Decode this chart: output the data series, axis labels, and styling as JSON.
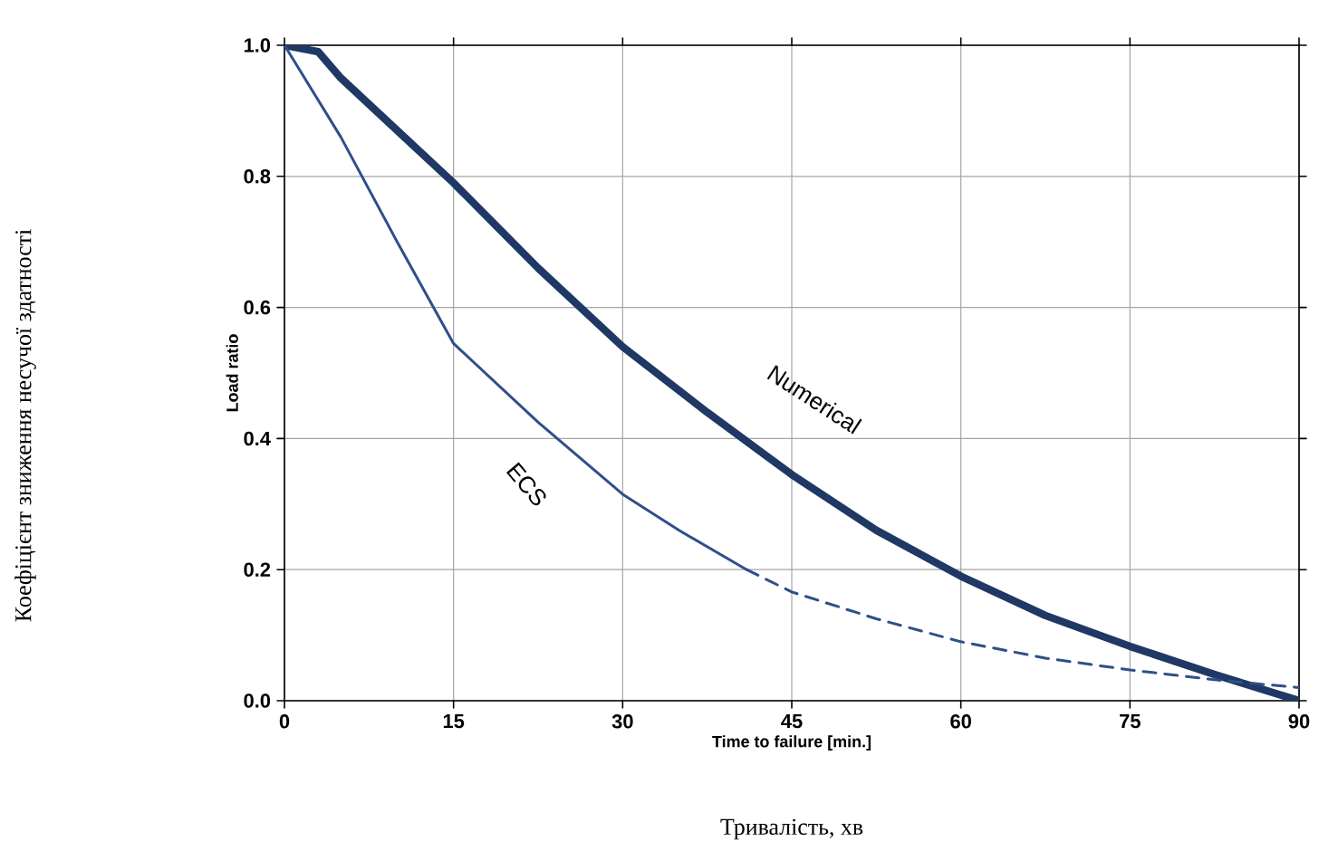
{
  "chart_data": {
    "type": "line",
    "xlabel": "Time to failure [min.]",
    "ylabel": "Load ratio",
    "annotations": [
      "Коефіцієнт зниження несучої здатності",
      "Тривалість, хв"
    ],
    "xlim": [
      0,
      90
    ],
    "ylim": [
      0,
      1
    ],
    "xticks": [
      0,
      15,
      30,
      45,
      60,
      75,
      90
    ],
    "yticks": [
      {
        "value": 0,
        "label": "0.0"
      },
      {
        "value": 0.2,
        "label": "0.2"
      },
      {
        "value": 0.4,
        "label": "0.4"
      },
      {
        "value": 0.6,
        "label": "0.6"
      },
      {
        "value": 0.8,
        "label": "0.8"
      },
      {
        "value": 1,
        "label": "1.0"
      }
    ],
    "grid": true,
    "line_style": "solid",
    "series": [
      {
        "name": "Numerical",
        "color": "#1f3864",
        "x": [
          0,
          3,
          5,
          10,
          15,
          22.5,
          30,
          37.5,
          45,
          52.5,
          60,
          67.5,
          75,
          82.5,
          90
        ],
        "values": [
          1,
          0.99,
          0.95,
          0.87,
          0.79,
          0.66,
          0.54,
          0.44,
          0.345,
          0.26,
          0.19,
          0.13,
          0.083,
          0.04,
          0.0
        ]
      },
      {
        "name": "ECS",
        "color": "#2f4f8a",
        "x": [
          0,
          5,
          10,
          15,
          22.5,
          30,
          35,
          41
        ],
        "values": [
          1,
          0.86,
          0.7,
          0.545,
          0.425,
          0.315,
          0.26,
          0.2
        ]
      },
      {
        "color": "#2f4f8a",
        "line_style": "dashed",
        "x": [
          41,
          45,
          52.5,
          60,
          67.5,
          75,
          82.5,
          90
        ],
        "values": [
          0.2,
          0.166,
          0.125,
          0.09,
          0.065,
          0.047,
          0.032,
          0.02
        ]
      }
    ]
  }
}
